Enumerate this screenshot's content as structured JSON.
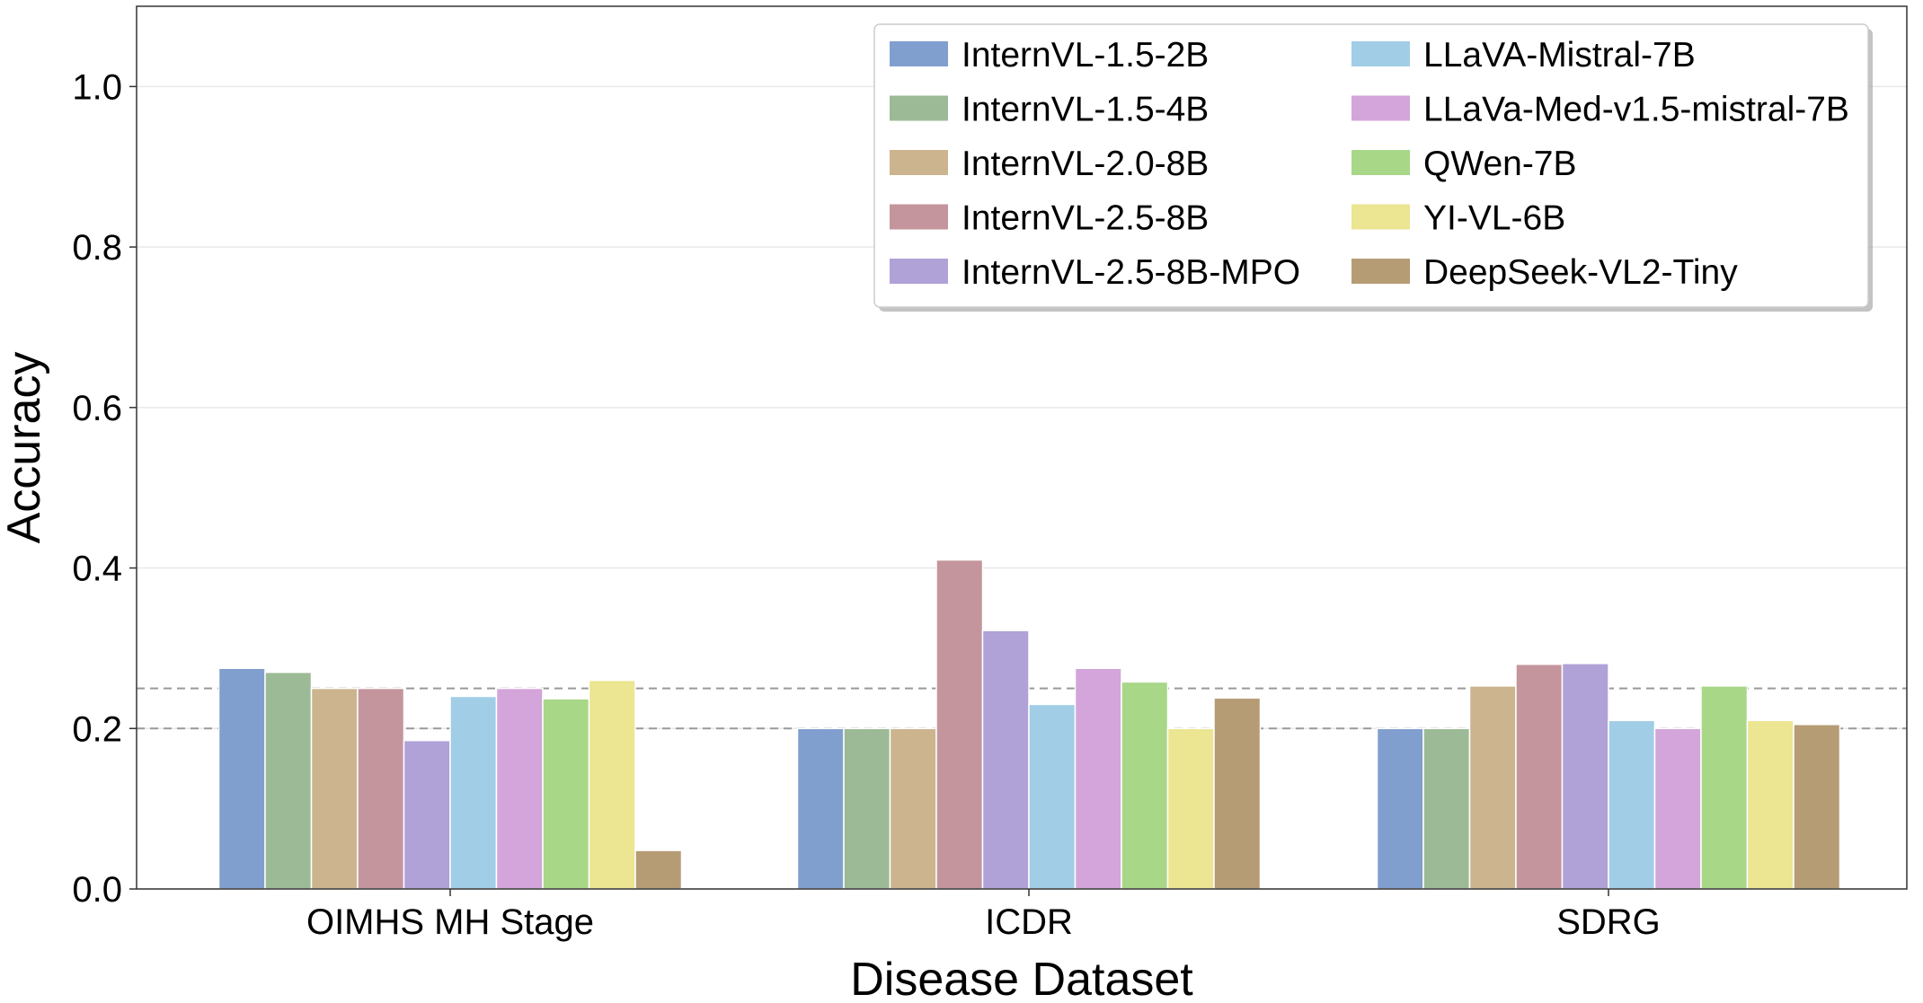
{
  "chart_data": {
    "type": "bar",
    "xlabel": "Disease Dataset",
    "ylabel": "Accuracy",
    "ylim": [
      0,
      1.1
    ],
    "yticks": [
      "0.0",
      "0.2",
      "0.4",
      "0.6",
      "0.8",
      "1.0"
    ],
    "categories": [
      "OIMHS MH Stage",
      "ICDR",
      "SDRG"
    ],
    "reference_lines": [
      0.25,
      0.2
    ],
    "grid": true,
    "legend_position": "top-right",
    "series": [
      {
        "name": "InternVL-1.5-2B",
        "color": "#819fce",
        "values": [
          0.275,
          0.2,
          0.2
        ]
      },
      {
        "name": "InternVL-1.5-4B",
        "color": "#9dba96",
        "values": [
          0.27,
          0.2,
          0.2
        ]
      },
      {
        "name": "InternVL-2.0-8B",
        "color": "#cbb48e",
        "values": [
          0.25,
          0.2,
          0.253
        ]
      },
      {
        "name": "InternVL-2.5-8B",
        "color": "#c4959d",
        "values": [
          0.25,
          0.41,
          0.28
        ]
      },
      {
        "name": "InternVL-2.5-8B-MPO",
        "color": "#b0a1d7",
        "values": [
          0.185,
          0.322,
          0.281
        ]
      },
      {
        "name": "LLaVA-Mistral-7B",
        "color": "#a1cde7",
        "values": [
          0.24,
          0.23,
          0.21
        ]
      },
      {
        "name": "LLaVa-Med-v1.5-mistral-7B",
        "color": "#d3a5da",
        "values": [
          0.25,
          0.275,
          0.2
        ]
      },
      {
        "name": "QWen-7B",
        "color": "#a8d787",
        "values": [
          0.237,
          0.258,
          0.253
        ]
      },
      {
        "name": "YI-VL-6B",
        "color": "#ece591",
        "values": [
          0.26,
          0.2,
          0.21
        ]
      },
      {
        "name": "DeepSeek-VL2-Tiny",
        "color": "#b69c75",
        "values": [
          0.048,
          0.238,
          0.205
        ]
      }
    ]
  }
}
